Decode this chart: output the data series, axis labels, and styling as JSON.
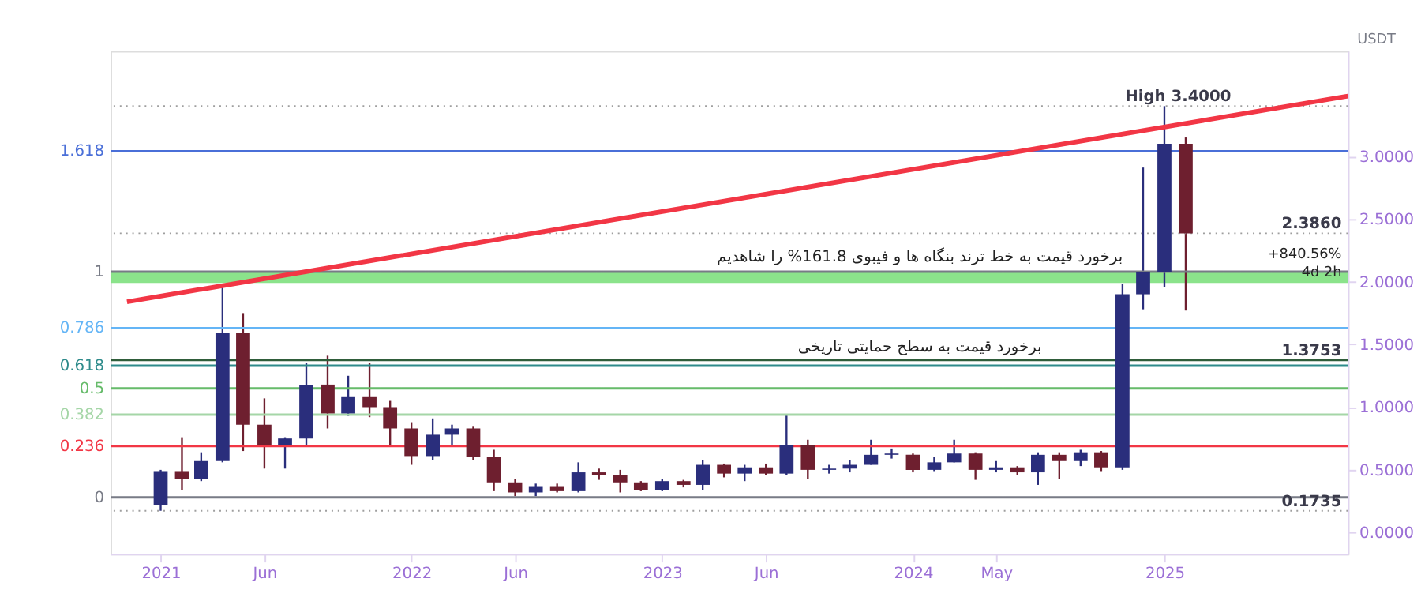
{
  "chart_data": {
    "type": "candlestick",
    "x": [
      "2021-01-01",
      "2021-02-01",
      "2021-03-01",
      "2021-04-01",
      "2021-05-01",
      "2021-06-01",
      "2021-07-01",
      "2021-08-01",
      "2021-09-01",
      "2021-10-01",
      "2021-11-01",
      "2021-12-01",
      "2022-01-01",
      "2022-02-01",
      "2022-03-01",
      "2022-04-01",
      "2022-05-01",
      "2022-06-01",
      "2022-07-01",
      "2022-08-01",
      "2022-09-01",
      "2022-10-01",
      "2022-11-01",
      "2022-12-01",
      "2023-01-01",
      "2023-02-01",
      "2023-03-01",
      "2023-04-01",
      "2023-05-01",
      "2023-06-01",
      "2023-07-01",
      "2023-08-01",
      "2023-09-01",
      "2023-10-01",
      "2023-11-01",
      "2023-12-01",
      "2024-01-01",
      "2024-02-01",
      "2024-03-01",
      "2024-04-01",
      "2024-05-01",
      "2024-06-01",
      "2024-07-01",
      "2024-08-01",
      "2024-09-01",
      "2024-10-01",
      "2024-11-01",
      "2024-12-01",
      "2025-01-01",
      "2025-02-01"
    ],
    "ohlc": [
      [
        0.22,
        0.5,
        0.1735,
        0.49
      ],
      [
        0.49,
        0.76,
        0.34,
        0.43
      ],
      [
        0.43,
        0.64,
        0.41,
        0.57
      ],
      [
        0.57,
        1.96,
        0.56,
        1.59
      ],
      [
        1.59,
        1.75,
        0.65,
        0.86
      ],
      [
        0.86,
        1.07,
        0.51,
        0.7
      ],
      [
        0.7,
        0.76,
        0.51,
        0.75
      ],
      [
        0.75,
        1.35,
        0.7,
        1.18
      ],
      [
        1.18,
        1.41,
        0.83,
        0.95
      ],
      [
        0.95,
        1.25,
        0.93,
        1.08
      ],
      [
        1.08,
        1.35,
        0.92,
        1.0
      ],
      [
        1.0,
        1.05,
        0.7,
        0.83
      ],
      [
        0.83,
        0.88,
        0.54,
        0.61
      ],
      [
        0.61,
        0.91,
        0.58,
        0.78
      ],
      [
        0.78,
        0.86,
        0.69,
        0.83
      ],
      [
        0.83,
        0.85,
        0.58,
        0.6
      ],
      [
        0.6,
        0.66,
        0.33,
        0.4
      ],
      [
        0.4,
        0.43,
        0.29,
        0.32
      ],
      [
        0.32,
        0.39,
        0.29,
        0.37
      ],
      [
        0.37,
        0.39,
        0.32,
        0.33
      ],
      [
        0.33,
        0.56,
        0.32,
        0.48
      ],
      [
        0.48,
        0.51,
        0.42,
        0.46
      ],
      [
        0.46,
        0.5,
        0.32,
        0.4
      ],
      [
        0.4,
        0.41,
        0.33,
        0.34
      ],
      [
        0.34,
        0.43,
        0.33,
        0.41
      ],
      [
        0.41,
        0.42,
        0.36,
        0.38
      ],
      [
        0.38,
        0.58,
        0.34,
        0.54
      ],
      [
        0.54,
        0.55,
        0.44,
        0.47
      ],
      [
        0.47,
        0.54,
        0.41,
        0.52
      ],
      [
        0.52,
        0.55,
        0.46,
        0.47
      ],
      [
        0.47,
        0.94,
        0.46,
        0.7
      ],
      [
        0.7,
        0.74,
        0.43,
        0.5
      ],
      [
        0.5,
        0.54,
        0.47,
        0.51
      ],
      [
        0.51,
        0.58,
        0.48,
        0.54
      ],
      [
        0.54,
        0.74,
        0.54,
        0.62
      ],
      [
        0.62,
        0.67,
        0.59,
        0.63
      ],
      [
        0.62,
        0.63,
        0.48,
        0.5
      ],
      [
        0.5,
        0.6,
        0.49,
        0.56
      ],
      [
        0.56,
        0.74,
        0.56,
        0.63
      ],
      [
        0.63,
        0.64,
        0.42,
        0.5
      ],
      [
        0.5,
        0.57,
        0.48,
        0.52
      ],
      [
        0.52,
        0.53,
        0.46,
        0.48
      ],
      [
        0.48,
        0.64,
        0.38,
        0.62
      ],
      [
        0.62,
        0.64,
        0.43,
        0.57
      ],
      [
        0.57,
        0.66,
        0.53,
        0.64
      ],
      [
        0.64,
        0.65,
        0.49,
        0.52
      ],
      [
        0.52,
        1.98,
        0.5,
        1.9
      ],
      [
        1.9,
        2.91,
        1.78,
        2.08
      ],
      [
        2.08,
        3.4,
        1.96,
        3.1
      ],
      [
        3.1,
        3.15,
        1.77,
        2.386
      ]
    ],
    "colors": [
      "#2a2e7c",
      "#6e1f2f",
      "#2a2e7c",
      "#2a2e7c",
      "#6e1f2f",
      "#6e1f2f",
      "#2a2e7c",
      "#2a2e7c",
      "#6e1f2f",
      "#2a2e7c",
      "#6e1f2f",
      "#6e1f2f",
      "#6e1f2f",
      "#2a2e7c",
      "#2a2e7c",
      "#6e1f2f",
      "#6e1f2f",
      "#6e1f2f",
      "#2a2e7c",
      "#6e1f2f",
      "#2a2e7c",
      "#6e1f2f",
      "#6e1f2f",
      "#6e1f2f",
      "#2a2e7c",
      "#6e1f2f",
      "#2a2e7c",
      "#6e1f2f",
      "#2a2e7c",
      "#6e1f2f",
      "#2a2e7c",
      "#6e1f2f",
      "#2a2e7c",
      "#2a2e7c",
      "#2a2e7c",
      "#2a2e7c",
      "#6e1f2f",
      "#2a2e7c",
      "#2a2e7c",
      "#6e1f2f",
      "#2a2e7c",
      "#6e1f2f",
      "#2a2e7c",
      "#6e1f2f",
      "#2a2e7c",
      "#6e1f2f",
      "#2a2e7c",
      "#2a2e7c",
      "#2a2e7c",
      "#6e1f2f"
    ],
    "series": [
      {
        "type": "line",
        "x": [
          "2020-11-13",
          "2025-09-25"
        ],
        "values": [
          1.84,
          3.48
        ],
        "color": "#f23645"
      }
    ],
    "ylabel": "USDT",
    "xlim": [
      "2020-10-20",
      "2025-09-25"
    ],
    "ylim": [
      -0.17,
      3.84
    ],
    "yticks": [
      {
        "value": 0,
        "label": "0.0000"
      },
      {
        "value": 0.5,
        "label": "0.5000"
      },
      {
        "value": 1,
        "label": "1.0000"
      },
      {
        "value": 1.5,
        "label": "1.5000"
      },
      {
        "value": 2,
        "label": "2.0000"
      },
      {
        "value": 2.5,
        "label": "2.5000"
      },
      {
        "value": 3,
        "label": "3.0000"
      }
    ],
    "xticks": [
      {
        "value": "2021-01-01",
        "label": "2021"
      },
      {
        "value": "2021-06-01",
        "label": "Jun"
      },
      {
        "value": "2022-01-01",
        "label": "2022"
      },
      {
        "value": "2022-06-01",
        "label": "Jun"
      },
      {
        "value": "2023-01-01",
        "label": "2023"
      },
      {
        "value": "2023-06-01",
        "label": "Jun"
      },
      {
        "value": "2024-01-01",
        "label": "2024"
      },
      {
        "value": "2024-05-01",
        "label": "May"
      },
      {
        "value": "2025-01-01",
        "label": "2025"
      }
    ],
    "bands": [
      {
        "axis": "y",
        "from": 1.99,
        "to": 2.08,
        "color": "#7ee07e"
      }
    ],
    "ref_lines": [
      {
        "axis": "y",
        "value": 3.04,
        "color": "#4a6fd8"
      },
      {
        "axis": "y",
        "value": 2.08,
        "color": "#787b86"
      },
      {
        "axis": "y",
        "value": 1.63,
        "color": "#64b5f6"
      },
      {
        "axis": "y",
        "value": 1.33,
        "color": "#2e8b8b"
      },
      {
        "axis": "y",
        "value": 1.15,
        "color": "#66bb6a"
      },
      {
        "axis": "y",
        "value": 0.94,
        "color": "#a5d6a7"
      },
      {
        "axis": "y",
        "value": 0.69,
        "color": "#f23645"
      },
      {
        "axis": "y",
        "value": 0.28,
        "color": "#787b86"
      },
      {
        "axis": "y",
        "value": 1.3753,
        "label": "1.3753",
        "color": "#2f5d3a"
      },
      {
        "axis": "y",
        "value": 2.386,
        "label": "2.3860",
        "color": "#9e9e9e",
        "line_style": "dotted"
      },
      {
        "axis": "y",
        "value": 3.4,
        "label": "High 3.4000",
        "color": "#9e9e9e",
        "line_style": "dotted"
      },
      {
        "axis": "y",
        "value": 0.1735,
        "label": "0.1735",
        "color": "#9e9e9e",
        "line_style": "dotted"
      }
    ],
    "annotations": [
      "برخورد قیمت به خط ترند بنگاه ها و فیبوی 161.8% را شاهدیم",
      "برخورد قیمت به سطح حمایتی تاریخی",
      "+840.56%",
      "4d 2h",
      "1.618",
      "1",
      "0.786",
      "0.618",
      "0.5",
      "0.382",
      "0.236",
      "0"
    ]
  }
}
